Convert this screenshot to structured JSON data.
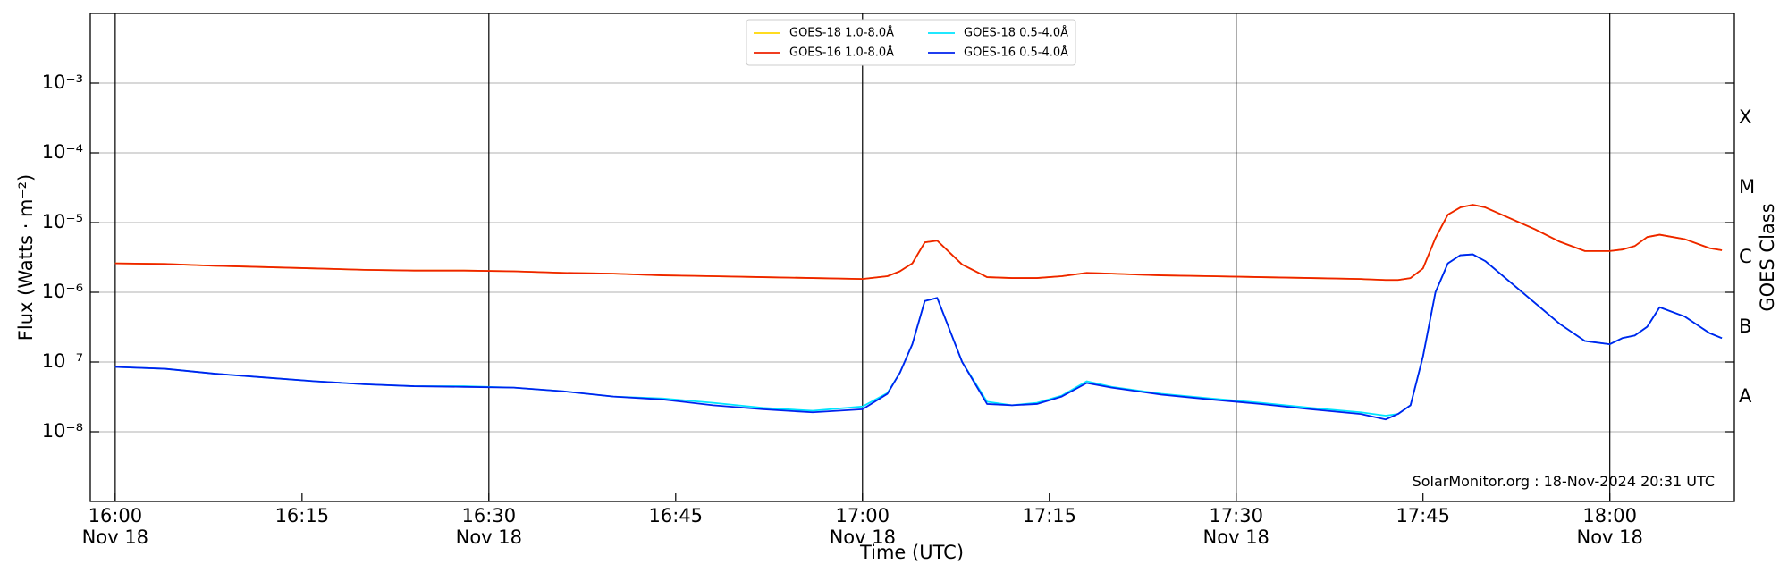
{
  "chart_data": {
    "type": "line",
    "y_label": "Flux (Watts · m⁻²)",
    "x_label": "Time (UTC)",
    "y2_label": "GOES Class",
    "annotation": "SolarMonitor.org : 18-Nov-2024 20:31 UTC",
    "yscale": "log",
    "grid": true,
    "legend": "upper center",
    "xlim": [
      "15:58",
      "18:10"
    ],
    "ylim": [
      1e-09,
      0.01
    ],
    "y2lim": [
      1e-09,
      0.01
    ],
    "xticks": [
      {
        "value": "16:00",
        "label": [
          "16:00",
          "Nov 18"
        ]
      },
      {
        "value": "16:15",
        "label": [
          "16:15"
        ]
      },
      {
        "value": "16:30",
        "label": [
          "16:30",
          "Nov 18"
        ]
      },
      {
        "value": "16:45",
        "label": [
          "16:45"
        ]
      },
      {
        "value": "17:00",
        "label": [
          "17:00",
          "Nov 18"
        ]
      },
      {
        "value": "17:15",
        "label": [
          "17:15"
        ]
      },
      {
        "value": "17:30",
        "label": [
          "17:30",
          "Nov 18"
        ]
      },
      {
        "value": "17:45",
        "label": [
          "17:45"
        ]
      },
      {
        "value": "18:00",
        "label": [
          "18:00",
          "Nov 18"
        ]
      }
    ],
    "yticks": [
      {
        "value": 1e-08,
        "label": "10⁻⁸"
      },
      {
        "value": 1e-07,
        "label": "10⁻⁷"
      },
      {
        "value": 1e-06,
        "label": "10⁻⁶"
      },
      {
        "value": 1e-05,
        "label": "10⁻⁵"
      },
      {
        "value": 0.0001,
        "label": "10⁻⁴"
      },
      {
        "value": 0.001,
        "label": "10⁻³"
      }
    ],
    "y2ticks": [
      {
        "value": 3.162e-08,
        "label": "A"
      },
      {
        "value": 3.162e-07,
        "label": "B"
      },
      {
        "value": 3.162e-06,
        "label": "C"
      },
      {
        "value": 3.162e-05,
        "label": "M"
      },
      {
        "value": 0.0003162,
        "label": "X"
      }
    ],
    "x": [
      "16:00",
      "16:04",
      "16:08",
      "16:12",
      "16:16",
      "16:20",
      "16:24",
      "16:28",
      "16:32",
      "16:36",
      "16:40",
      "16:44",
      "16:48",
      "16:52",
      "16:56",
      "17:00",
      "17:02",
      "17:03",
      "17:04",
      "17:05",
      "17:06",
      "17:08",
      "17:10",
      "17:12",
      "17:14",
      "17:16",
      "17:18",
      "17:20",
      "17:24",
      "17:28",
      "17:32",
      "17:36",
      "17:40",
      "17:42",
      "17:43",
      "17:44",
      "17:45",
      "17:46",
      "17:47",
      "17:48",
      "17:49",
      "17:50",
      "17:52",
      "17:54",
      "17:56",
      "17:58",
      "18:00",
      "18:01",
      "18:02",
      "18:03",
      "18:04",
      "18:06",
      "18:08",
      "18:09"
    ],
    "series": [
      {
        "name": "GOES-18 1.0-8.0Å",
        "color": "#ffd700",
        "values": [
          2.6e-06,
          2.55e-06,
          2.4e-06,
          2.3e-06,
          2.2e-06,
          2.1e-06,
          2.05e-06,
          2.05e-06,
          2e-06,
          1.9e-06,
          1.85e-06,
          1.75e-06,
          1.7e-06,
          1.65e-06,
          1.6e-06,
          1.55e-06,
          1.7e-06,
          2e-06,
          2.6e-06,
          5.2e-06,
          5.5e-06,
          2.5e-06,
          1.65e-06,
          1.6e-06,
          1.6e-06,
          1.7e-06,
          1.9e-06,
          1.85e-06,
          1.75e-06,
          1.7e-06,
          1.65e-06,
          1.6e-06,
          1.55e-06,
          1.5e-06,
          1.5e-06,
          1.6e-06,
          2.2e-06,
          6e-06,
          1.3e-05,
          1.65e-05,
          1.8e-05,
          1.65e-05,
          1.15e-05,
          8e-06,
          5.3e-06,
          3.9e-06,
          3.9e-06,
          4.1e-06,
          4.6e-06,
          6.2e-06,
          6.7e-06,
          5.8e-06,
          4.3e-06,
          4e-06
        ]
      },
      {
        "name": "GOES-16 1.0-8.0Å",
        "color": "#ee2200",
        "values": [
          2.6e-06,
          2.55e-06,
          2.4e-06,
          2.3e-06,
          2.2e-06,
          2.1e-06,
          2.05e-06,
          2.05e-06,
          2e-06,
          1.9e-06,
          1.85e-06,
          1.75e-06,
          1.7e-06,
          1.65e-06,
          1.6e-06,
          1.55e-06,
          1.7e-06,
          2e-06,
          2.6e-06,
          5.2e-06,
          5.5e-06,
          2.5e-06,
          1.65e-06,
          1.6e-06,
          1.6e-06,
          1.7e-06,
          1.9e-06,
          1.85e-06,
          1.75e-06,
          1.7e-06,
          1.65e-06,
          1.6e-06,
          1.55e-06,
          1.5e-06,
          1.5e-06,
          1.6e-06,
          2.2e-06,
          6e-06,
          1.3e-05,
          1.65e-05,
          1.8e-05,
          1.65e-05,
          1.15e-05,
          8e-06,
          5.3e-06,
          3.9e-06,
          3.9e-06,
          4.1e-06,
          4.6e-06,
          6.2e-06,
          6.7e-06,
          5.8e-06,
          4.3e-06,
          4e-06
        ]
      },
      {
        "name": "GOES-18 0.5-4.0Å",
        "color": "#00e5ff",
        "values": [
          8.5e-08,
          8e-08,
          6.8e-08,
          6e-08,
          5.3e-08,
          4.8e-08,
          4.5e-08,
          4.5e-08,
          4.3e-08,
          3.8e-08,
          3.2e-08,
          3e-08,
          2.6e-08,
          2.2e-08,
          2e-08,
          2.3e-08,
          3.6e-08,
          7e-08,
          1.8e-07,
          7.5e-07,
          8.3e-07,
          1e-07,
          2.7e-08,
          2.4e-08,
          2.6e-08,
          3.3e-08,
          5.3e-08,
          4.4e-08,
          3.5e-08,
          3e-08,
          2.6e-08,
          2.2e-08,
          1.9e-08,
          1.7e-08,
          1.8e-08,
          2.4e-08,
          1.2e-07,
          1e-06,
          2.6e-06,
          3.4e-06,
          3.5e-06,
          2.8e-06,
          1.4e-06,
          7e-07,
          3.5e-07,
          2e-07,
          1.8e-07,
          2.2e-07,
          2.4e-07,
          3.2e-07,
          6.1e-07,
          4.5e-07,
          2.6e-07,
          2.2e-07
        ]
      },
      {
        "name": "GOES-16 0.5-4.0Å",
        "color": "#0022ee",
        "values": [
          8.5e-08,
          8e-08,
          6.8e-08,
          6e-08,
          5.3e-08,
          4.8e-08,
          4.5e-08,
          4.4e-08,
          4.3e-08,
          3.8e-08,
          3.2e-08,
          2.9e-08,
          2.4e-08,
          2.1e-08,
          1.9e-08,
          2.1e-08,
          3.5e-08,
          7e-08,
          1.8e-07,
          7.5e-07,
          8.3e-07,
          1e-07,
          2.5e-08,
          2.4e-08,
          2.5e-08,
          3.2e-08,
          5e-08,
          4.3e-08,
          3.4e-08,
          2.9e-08,
          2.5e-08,
          2.1e-08,
          1.8e-08,
          1.5e-08,
          1.8e-08,
          2.4e-08,
          1.2e-07,
          1e-06,
          2.6e-06,
          3.4e-06,
          3.5e-06,
          2.8e-06,
          1.4e-06,
          7e-07,
          3.5e-07,
          2e-07,
          1.8e-07,
          2.2e-07,
          2.4e-07,
          3.2e-07,
          6.1e-07,
          4.5e-07,
          2.6e-07,
          2.2e-07
        ]
      }
    ]
  }
}
